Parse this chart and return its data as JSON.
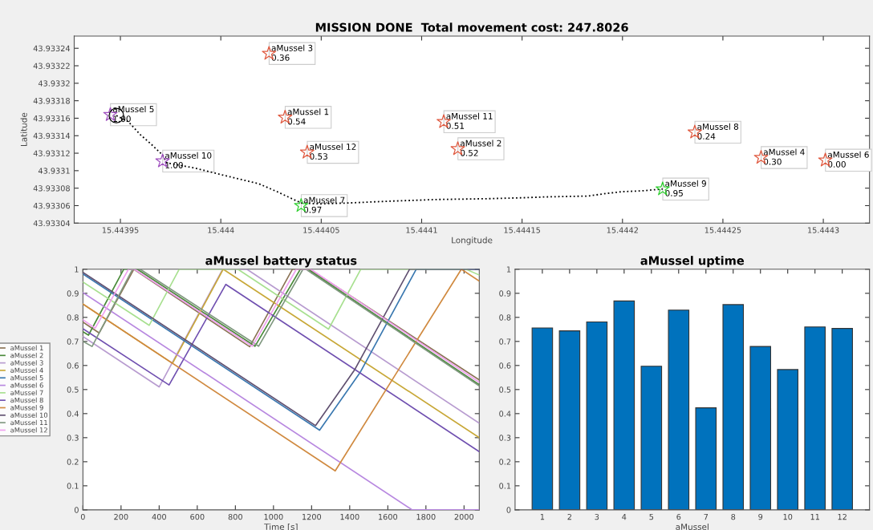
{
  "chart_data": [
    {
      "type": "scatter",
      "title": "MISSION DONE  Total movement cost: 247.8026",
      "xlabel": "Longitude",
      "ylabel": "Latitude",
      "xlim": [
        15.443927,
        15.444323
      ],
      "ylim": [
        43.93304,
        43.933254
      ],
      "xticks": [
        15.44395,
        15.444,
        15.44405,
        15.4441,
        15.44415,
        15.4442,
        15.44425,
        15.4443
      ],
      "yticks": [
        43.93304,
        43.93306,
        43.93308,
        43.9331,
        43.93312,
        43.93314,
        43.93316,
        43.93318,
        43.9332,
        43.93322,
        43.93324
      ],
      "series": [
        {
          "type": "line",
          "color": "#000000",
          "line_style": "dotted",
          "marker": "none",
          "x": [
            15.443948,
            15.443954,
            15.44396,
            15.443965,
            15.443971,
            15.443973,
            15.443987,
            15.444001,
            15.444019,
            15.444028,
            15.44404,
            15.444049,
            15.444063,
            15.444083,
            15.444107,
            15.444134,
            15.44415,
            15.444162,
            15.444183,
            15.444192,
            15.4442,
            15.44421,
            15.44422
          ],
          "values": [
            43.933163,
            43.933156,
            43.933141,
            43.933131,
            43.933118,
            43.933109,
            43.933103,
            43.933095,
            43.933085,
            43.933076,
            43.933063,
            43.933062,
            43.933063,
            43.933065,
            43.933067,
            43.933068,
            43.933069,
            43.93307,
            43.933071,
            43.933074,
            43.933076,
            43.933077,
            43.933079
          ]
        },
        {
          "color": "#e05a40",
          "marker": "star",
          "x": [
            15.444032,
            15.444118,
            15.444024,
            15.444269,
            15.444301,
            15.444236,
            15.444043,
            15.444111
          ],
          "values": [
            43.933161,
            43.933125,
            43.933234,
            43.933115,
            43.933112,
            43.933144,
            43.933121,
            43.933156
          ]
        },
        {
          "color": "#a050c0",
          "marker": "star",
          "x": [
            15.443945,
            15.443971
          ],
          "values": [
            43.933164,
            43.933111
          ]
        },
        {
          "color": "#30d030",
          "marker": "star",
          "x": [
            15.44404,
            15.44422
          ],
          "values": [
            43.93306,
            43.933079
          ]
        },
        {
          "color": "#000000",
          "marker": "circle",
          "x": [
            15.443948
          ],
          "values": [
            43.933163
          ]
        }
      ],
      "annotations": [
        {
          "text": "aMussel 1\n0.54",
          "x": 15.444032,
          "y": 43.933161
        },
        {
          "text": "aMussel 2\n0.52",
          "x": 15.444118,
          "y": 43.933125
        },
        {
          "text": "aMussel 3\n0.36",
          "x": 15.444024,
          "y": 43.933234
        },
        {
          "text": "aMussel 4\n0.30",
          "x": 15.444269,
          "y": 43.933115
        },
        {
          "text": "aMussel 5\n1.00",
          "x": 15.443945,
          "y": 43.933164
        },
        {
          "text": "aMussel 6\n0.00",
          "x": 15.444301,
          "y": 43.933112
        },
        {
          "text": "aMussel 7\n0.97",
          "x": 15.44404,
          "y": 43.93306
        },
        {
          "text": "aMussel 8\n0.24",
          "x": 15.444236,
          "y": 43.933144
        },
        {
          "text": "aMussel 9\n0.95",
          "x": 15.44422,
          "y": 43.933079
        },
        {
          "text": "aMussel 10\n1.00",
          "x": 15.443971,
          "y": 43.933111
        },
        {
          "text": "aMussel 11\n0.51",
          "x": 15.444111,
          "y": 43.933156
        },
        {
          "text": "aMussel 12\n0.53",
          "x": 15.444043,
          "y": 43.933121
        }
      ]
    },
    {
      "type": "line",
      "title": "aMussel battery status",
      "xlabel": "Time [s]",
      "xlim": [
        0,
        2080
      ],
      "ylim": [
        0,
        1
      ],
      "xticks": [
        0,
        200,
        400,
        600,
        800,
        1000,
        1200,
        1400,
        1600,
        1800,
        2000
      ],
      "yticks": [
        0,
        0.1,
        0.2,
        0.3,
        0.4,
        0.5,
        0.6,
        0.7,
        0.8,
        0.9,
        1
      ],
      "legend": "left",
      "series": [
        {
          "name": "aMussel 1",
          "color": "#8b7355",
          "x": [
            0,
            85,
            267,
            875,
            1099,
            1190,
            2080
          ],
          "values": [
            0.78,
            0.735,
            1,
            0.678,
            1,
            1,
            0.54
          ]
        },
        {
          "name": "aMussel 2",
          "color": "#4a8a3a",
          "x": [
            0,
            29,
            214,
            285,
            903,
            1141,
            1180,
            2080
          ],
          "values": [
            0.74,
            0.726,
            1,
            1,
            0.68,
            1,
            1,
            0.52
          ]
        },
        {
          "name": "aMussel 3",
          "color": "#b89cd0",
          "x": [
            0,
            400,
            733,
            860,
            2080
          ],
          "values": [
            0.72,
            0.511,
            1,
            1,
            0.36
          ]
        },
        {
          "name": "aMussel 4",
          "color": "#c8a838",
          "x": [
            0,
            470,
            736,
            2080
          ],
          "values": [
            0.855,
            0.609,
            1,
            0.3
          ]
        },
        {
          "name": "aMussel 5",
          "color": "#3a78b0",
          "x": [
            0,
            1242,
            1454,
            1749,
            2080
          ],
          "values": [
            0.98,
            0.331,
            0.57,
            1,
            1
          ]
        },
        {
          "name": "aMussel 6",
          "color": "#b888e0",
          "x": [
            0,
            1728,
            2080
          ],
          "values": [
            0.903,
            0,
            0
          ]
        },
        {
          "name": "aMussel 7",
          "color": "#a8e090",
          "x": [
            0,
            348,
            505,
            813,
            1289,
            1458,
            2010,
            2080
          ],
          "values": [
            0.947,
            0.767,
            1,
            1,
            0.751,
            1,
            1,
            0.976
          ]
        },
        {
          "name": "aMussel 8",
          "color": "#7050b0",
          "x": [
            0,
            452,
            750,
            2080
          ],
          "values": [
            0.753,
            0.519,
            0.937,
            0.242
          ]
        },
        {
          "name": "aMussel 9",
          "color": "#d08a40",
          "x": [
            0,
            1324,
            1986,
            2080
          ],
          "values": [
            0.855,
            0.162,
            1,
            0.951
          ]
        },
        {
          "name": "aMussel 10",
          "color": "#605070",
          "x": [
            0,
            1221,
            1425,
            1714,
            2080
          ],
          "values": [
            0.987,
            0.35,
            0.581,
            1,
            1
          ]
        },
        {
          "name": "aMussel 11",
          "color": "#809880",
          "x": [
            0,
            48,
            260,
            300,
            922,
            1155,
            1170,
            2080
          ],
          "values": [
            0.7,
            0.679,
            1,
            1,
            0.68,
            1,
            1,
            0.515
          ]
        },
        {
          "name": "aMussel 12",
          "color": "#f0a0f0",
          "x": [
            0,
            64,
            239,
            270,
            889,
            1120,
            1195,
            2080
          ],
          "values": [
            0.79,
            0.755,
            1,
            1,
            0.68,
            1,
            1,
            0.53
          ]
        }
      ]
    },
    {
      "type": "bar",
      "title": "aMussel uptime",
      "xlabel": "aMussel",
      "color": "#0072bd",
      "categories": [
        "1",
        "2",
        "3",
        "4",
        "5",
        "6",
        "7",
        "8",
        "9",
        "10",
        "11",
        "12"
      ],
      "values": [
        0.756,
        0.744,
        0.781,
        0.868,
        0.597,
        0.83,
        0.424,
        0.853,
        0.679,
        0.583,
        0.76,
        0.754
      ],
      "ylim": [
        0,
        1
      ],
      "yticks": [
        0,
        0.1,
        0.2,
        0.3,
        0.4,
        0.5,
        0.6,
        0.7,
        0.8,
        0.9,
        1
      ]
    }
  ]
}
